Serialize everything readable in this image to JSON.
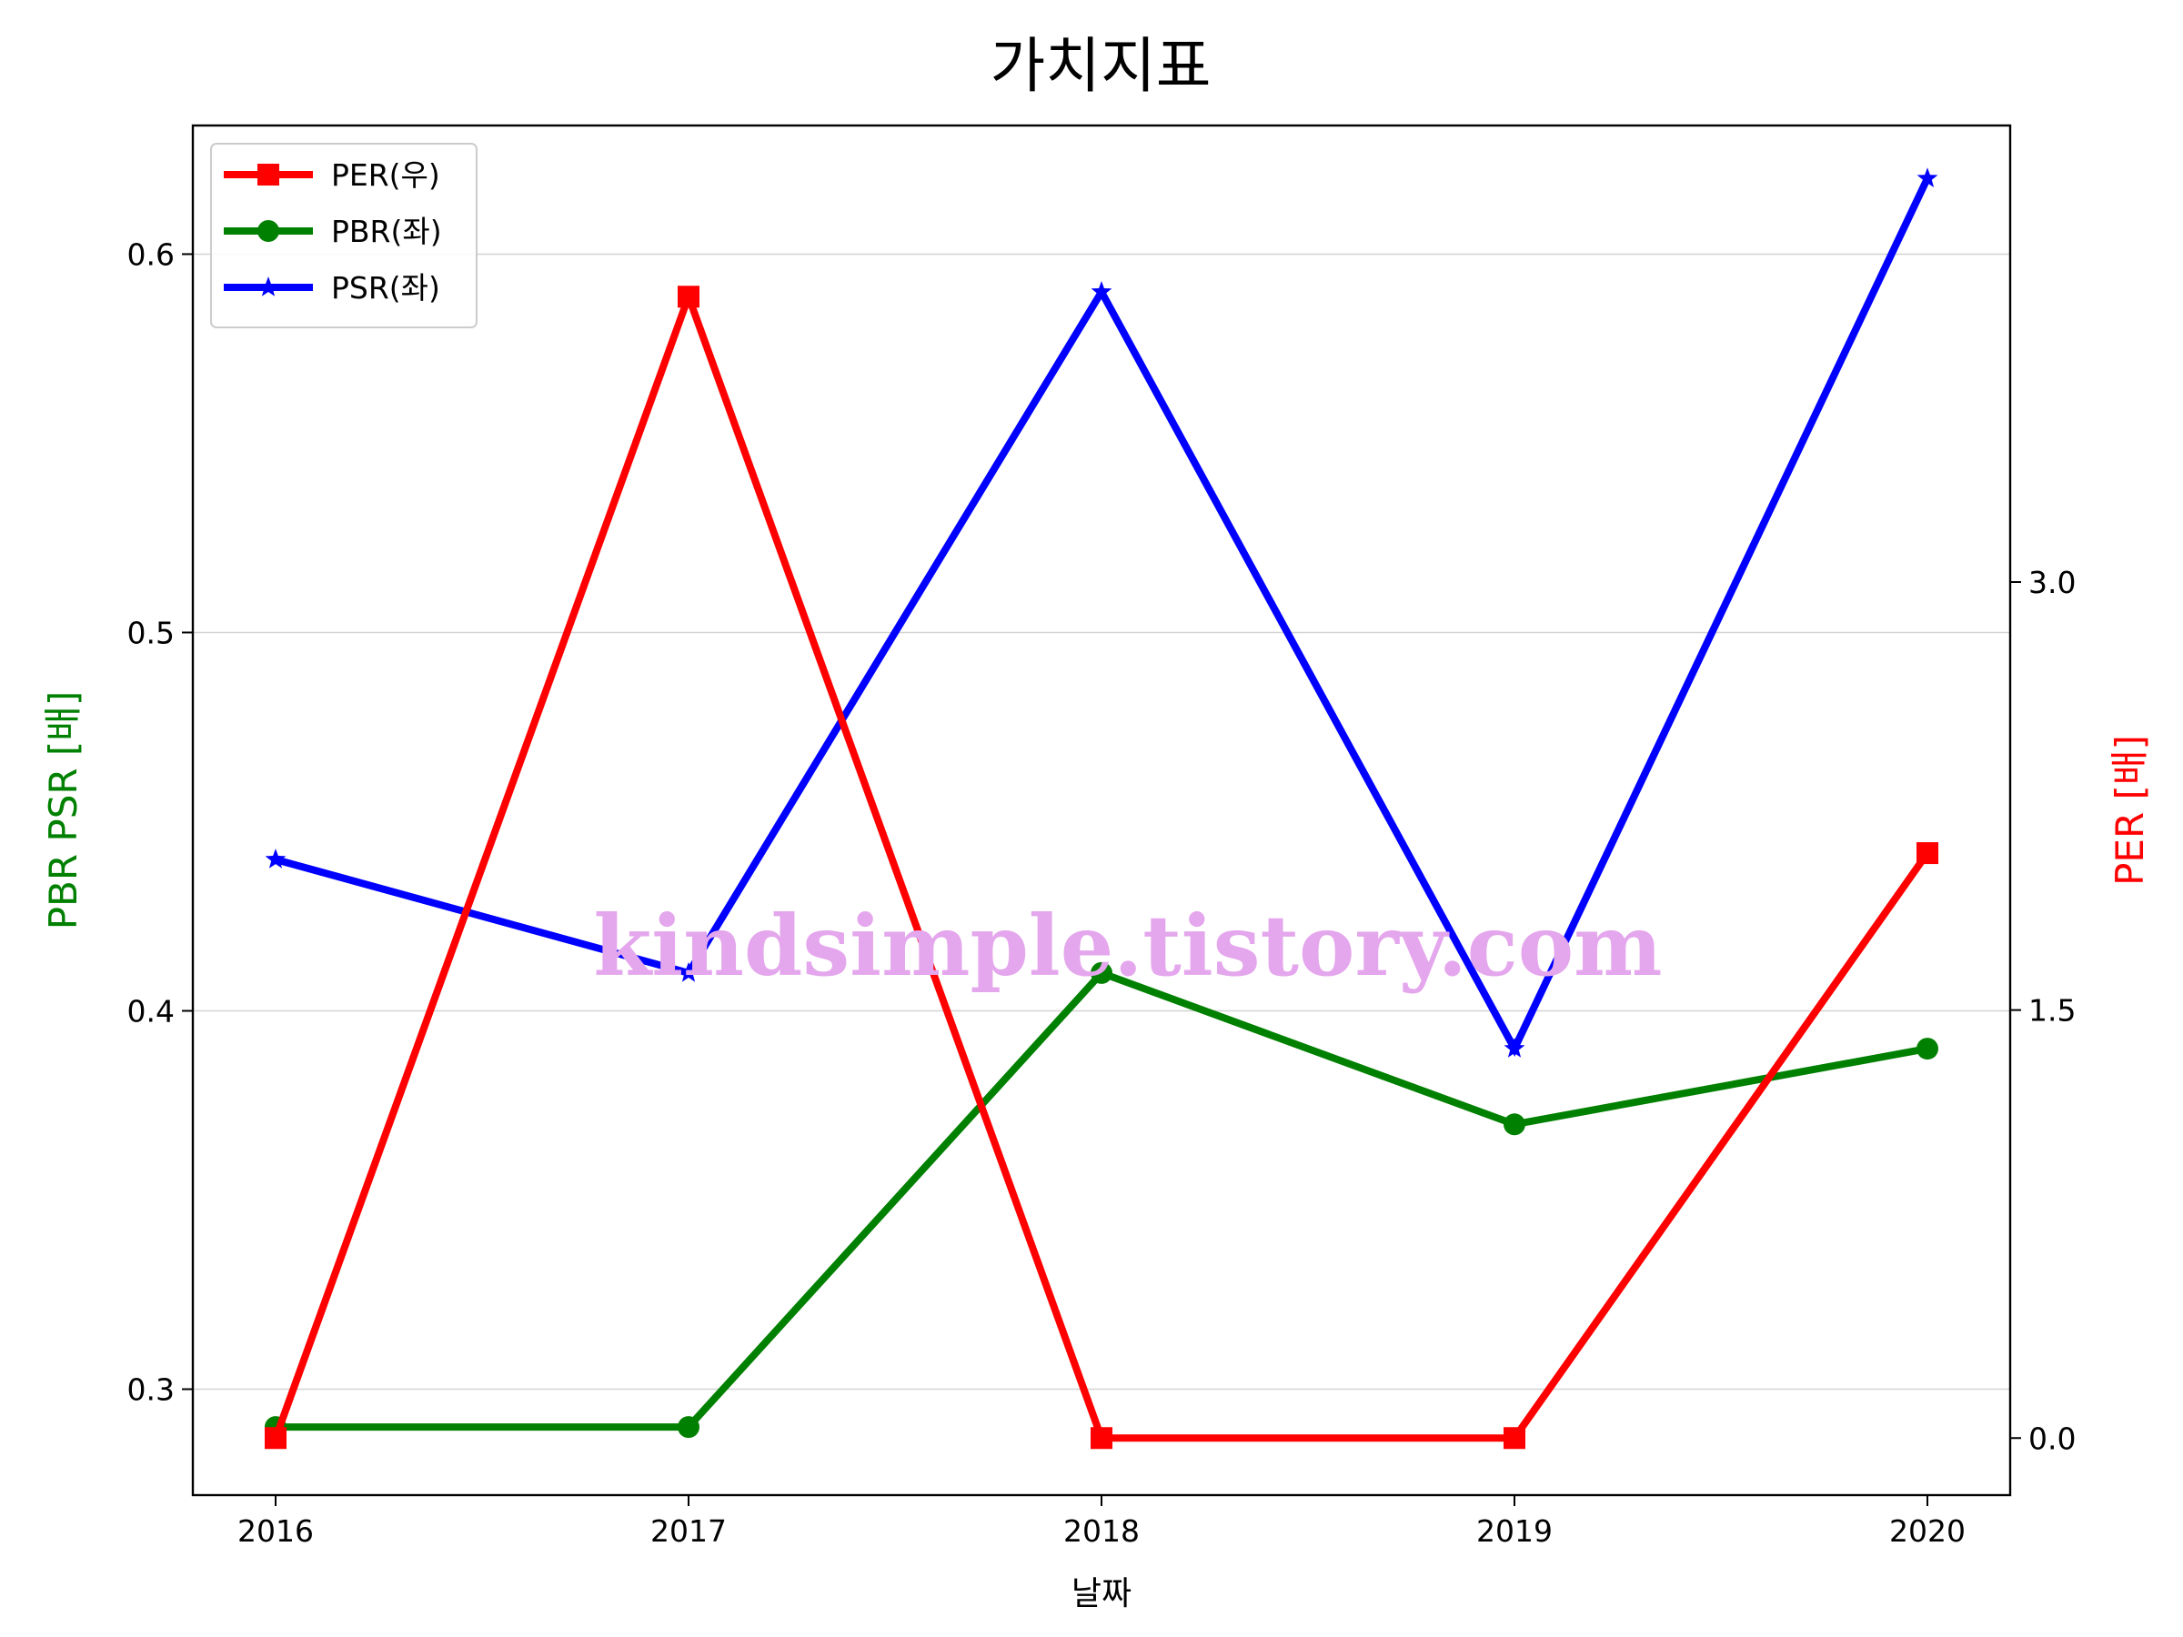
{
  "chart_data": {
    "type": "line",
    "title": "가치지표",
    "xlabel": "날짜",
    "ylabel_left": "PBR PSR [배]",
    "ylabel_right": "PER [배]",
    "categories": [
      "2016",
      "2017",
      "2018",
      "2019",
      "2020"
    ],
    "ylim_left": [
      0.272,
      0.634
    ],
    "ylim_right": [
      -0.2,
      4.6
    ],
    "yticks_left": [
      "0.3",
      "0.4",
      "0.5",
      "0.6"
    ],
    "yticks_right": [
      "0.0",
      "1.5",
      "3.0"
    ],
    "grid": "horizontal, left axis",
    "legend_position": "upper-left",
    "series": [
      {
        "name": "PER(우)",
        "axis": "right",
        "marker": "square",
        "color": "#ff0000",
        "values": [
          0.0,
          4.0,
          0.0,
          0.0,
          2.05
        ]
      },
      {
        "name": "PBR(좌)",
        "axis": "left",
        "marker": "circle",
        "color": "#008000",
        "values": [
          0.29,
          0.29,
          0.41,
          0.37,
          0.39
        ]
      },
      {
        "name": "PSR(좌)",
        "axis": "left",
        "marker": "star",
        "color": "#0000ff",
        "values": [
          0.44,
          0.41,
          0.59,
          0.39,
          0.62
        ]
      }
    ]
  },
  "watermark": {
    "text": "kindsimple.tistory.com",
    "color": "#e4a6ec"
  },
  "colors": {
    "left_axis_label": "#008000",
    "right_axis_label": "#ff0000",
    "grid": "#d3d3d3"
  }
}
